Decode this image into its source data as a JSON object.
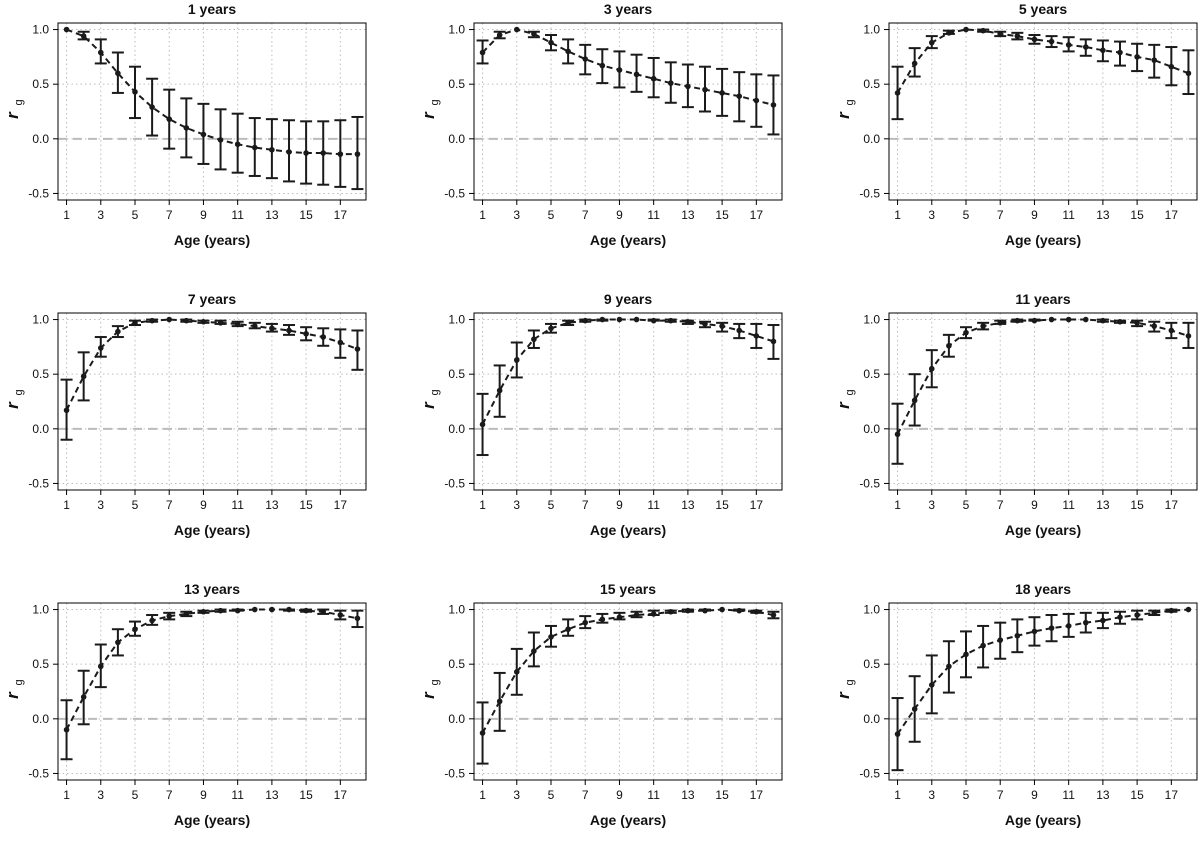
{
  "colors": {
    "line": "#1a1a1a",
    "grid": "#bdbdbd",
    "zero_line": "#bbbbbb",
    "frame": "#000000"
  },
  "chart_data": [
    {
      "type": "line",
      "title": "1 years",
      "xlabel": "Age (years)",
      "ylabel": "r",
      "ylabel_sub": "g",
      "xlim": [
        1,
        18
      ],
      "ylim": [
        -0.5,
        1.0
      ],
      "xticks": [
        1,
        3,
        5,
        7,
        9,
        11,
        13,
        15,
        17
      ],
      "yticks": [
        "1.0",
        "0.5",
        "0.0",
        "-0.5"
      ],
      "grid": true,
      "x": [
        1,
        2,
        3,
        4,
        5,
        6,
        7,
        8,
        9,
        10,
        11,
        12,
        13,
        14,
        15,
        16,
        17,
        18
      ],
      "series": [
        {
          "values": [
            1.0,
            0.94,
            0.79,
            0.6,
            0.43,
            0.29,
            0.18,
            0.1,
            0.04,
            -0.01,
            -0.05,
            -0.08,
            -0.1,
            -0.12,
            -0.13,
            -0.13,
            -0.14,
            -0.14
          ],
          "lower": [
            1.0,
            0.91,
            0.69,
            0.42,
            0.19,
            0.03,
            -0.09,
            -0.17,
            -0.23,
            -0.28,
            -0.31,
            -0.34,
            -0.36,
            -0.39,
            -0.41,
            -0.42,
            -0.44,
            -0.46
          ],
          "upper": [
            1.0,
            0.98,
            0.91,
            0.79,
            0.66,
            0.55,
            0.45,
            0.37,
            0.32,
            0.27,
            0.23,
            0.19,
            0.18,
            0.17,
            0.16,
            0.16,
            0.17,
            0.2
          ]
        }
      ]
    },
    {
      "type": "line",
      "title": "3 years",
      "xlabel": "Age (years)",
      "ylabel": "r",
      "ylabel_sub": "g",
      "xlim": [
        1,
        18
      ],
      "ylim": [
        -0.5,
        1.0
      ],
      "xticks": [
        1,
        3,
        5,
        7,
        9,
        11,
        13,
        15,
        17
      ],
      "yticks": [
        "1.0",
        "0.5",
        "0.0",
        "-0.5"
      ],
      "grid": true,
      "x": [
        1,
        2,
        3,
        4,
        5,
        6,
        7,
        8,
        9,
        10,
        11,
        12,
        13,
        14,
        15,
        16,
        17,
        18
      ],
      "series": [
        {
          "values": [
            0.79,
            0.95,
            1.0,
            0.96,
            0.88,
            0.8,
            0.73,
            0.67,
            0.63,
            0.59,
            0.55,
            0.51,
            0.48,
            0.45,
            0.42,
            0.39,
            0.35,
            0.31
          ],
          "lower": [
            0.69,
            0.92,
            1.0,
            0.93,
            0.81,
            0.69,
            0.59,
            0.51,
            0.47,
            0.43,
            0.38,
            0.33,
            0.29,
            0.25,
            0.21,
            0.16,
            0.11,
            0.04
          ],
          "upper": [
            0.9,
            0.98,
            1.0,
            0.98,
            0.95,
            0.91,
            0.86,
            0.82,
            0.8,
            0.77,
            0.74,
            0.7,
            0.68,
            0.66,
            0.64,
            0.61,
            0.59,
            0.58
          ]
        }
      ]
    },
    {
      "type": "line",
      "title": "5 years",
      "xlabel": "Age (years)",
      "ylabel": "r",
      "ylabel_sub": "g",
      "xlim": [
        1,
        18
      ],
      "ylim": [
        -0.5,
        1.0
      ],
      "xticks": [
        1,
        3,
        5,
        7,
        9,
        11,
        13,
        15,
        17
      ],
      "yticks": [
        "1.0",
        "0.5",
        "0.0",
        "-0.5"
      ],
      "grid": true,
      "x": [
        1,
        2,
        3,
        4,
        5,
        6,
        7,
        8,
        9,
        10,
        11,
        12,
        13,
        14,
        15,
        16,
        17,
        18
      ],
      "series": [
        {
          "values": [
            0.42,
            0.69,
            0.88,
            0.97,
            1.0,
            0.99,
            0.96,
            0.94,
            0.91,
            0.89,
            0.86,
            0.84,
            0.81,
            0.79,
            0.75,
            0.72,
            0.66,
            0.6
          ],
          "lower": [
            0.18,
            0.57,
            0.83,
            0.96,
            1.0,
            0.98,
            0.94,
            0.91,
            0.87,
            0.84,
            0.8,
            0.76,
            0.71,
            0.67,
            0.62,
            0.56,
            0.49,
            0.41
          ],
          "upper": [
            0.66,
            0.83,
            0.94,
            0.99,
            1.0,
            1.0,
            0.98,
            0.97,
            0.95,
            0.94,
            0.93,
            0.91,
            0.9,
            0.89,
            0.87,
            0.86,
            0.84,
            0.81
          ]
        }
      ]
    },
    {
      "type": "line",
      "title": "7 years",
      "xlabel": "Age (years)",
      "ylabel": "r",
      "ylabel_sub": "g",
      "xlim": [
        1,
        18
      ],
      "ylim": [
        -0.5,
        1.0
      ],
      "xticks": [
        1,
        3,
        5,
        7,
        9,
        11,
        13,
        15,
        17
      ],
      "yticks": [
        "1.0",
        "0.5",
        "0.0",
        "-0.5"
      ],
      "grid": true,
      "x": [
        1,
        2,
        3,
        4,
        5,
        6,
        7,
        8,
        9,
        10,
        11,
        12,
        13,
        14,
        15,
        16,
        17,
        18
      ],
      "series": [
        {
          "values": [
            0.17,
            0.48,
            0.74,
            0.89,
            0.97,
            0.99,
            1.0,
            0.99,
            0.98,
            0.97,
            0.96,
            0.94,
            0.92,
            0.9,
            0.87,
            0.84,
            0.79,
            0.73
          ],
          "lower": [
            -0.1,
            0.26,
            0.66,
            0.84,
            0.95,
            0.98,
            1.0,
            0.98,
            0.97,
            0.96,
            0.94,
            0.92,
            0.89,
            0.86,
            0.81,
            0.76,
            0.65,
            0.54
          ],
          "upper": [
            0.45,
            0.7,
            0.84,
            0.94,
            0.99,
            1.0,
            1.0,
            1.0,
            0.99,
            0.99,
            0.98,
            0.97,
            0.96,
            0.95,
            0.93,
            0.92,
            0.91,
            0.9
          ]
        }
      ]
    },
    {
      "type": "line",
      "title": "9 years",
      "xlabel": "Age (years)",
      "ylabel": "r",
      "ylabel_sub": "g",
      "xlim": [
        1,
        18
      ],
      "ylim": [
        -0.5,
        1.0
      ],
      "xticks": [
        1,
        3,
        5,
        7,
        9,
        11,
        13,
        15,
        17
      ],
      "yticks": [
        "1.0",
        "0.5",
        "0.0",
        "-0.5"
      ],
      "grid": true,
      "x": [
        1,
        2,
        3,
        4,
        5,
        6,
        7,
        8,
        9,
        10,
        11,
        12,
        13,
        14,
        15,
        16,
        17,
        18
      ],
      "series": [
        {
          "values": [
            0.04,
            0.35,
            0.63,
            0.82,
            0.92,
            0.97,
            0.99,
            1.0,
            1.0,
            1.0,
            0.99,
            0.99,
            0.98,
            0.96,
            0.94,
            0.9,
            0.85,
            0.8
          ],
          "lower": [
            -0.24,
            0.11,
            0.47,
            0.74,
            0.88,
            0.95,
            0.98,
            0.99,
            1.0,
            1.0,
            0.99,
            0.98,
            0.96,
            0.93,
            0.89,
            0.83,
            0.74,
            0.64
          ],
          "upper": [
            0.32,
            0.58,
            0.79,
            0.9,
            0.96,
            0.99,
            1.0,
            1.0,
            1.0,
            1.0,
            1.0,
            1.0,
            0.99,
            0.98,
            0.97,
            0.96,
            0.96,
            0.95
          ]
        }
      ]
    },
    {
      "type": "line",
      "title": "11 years",
      "xlabel": "Age (years)",
      "ylabel": "r",
      "ylabel_sub": "g",
      "xlim": [
        1,
        18
      ],
      "ylim": [
        -0.5,
        1.0
      ],
      "xticks": [
        1,
        3,
        5,
        7,
        9,
        11,
        13,
        15,
        17
      ],
      "yticks": [
        "1.0",
        "0.5",
        "0.0",
        "-0.5"
      ],
      "grid": true,
      "x": [
        1,
        2,
        3,
        4,
        5,
        6,
        7,
        8,
        9,
        10,
        11,
        12,
        13,
        14,
        15,
        16,
        17,
        18
      ],
      "series": [
        {
          "values": [
            -0.05,
            0.26,
            0.55,
            0.76,
            0.88,
            0.94,
            0.97,
            0.99,
            0.99,
            1.0,
            1.0,
            1.0,
            0.99,
            0.98,
            0.97,
            0.94,
            0.9,
            0.85
          ],
          "lower": [
            -0.32,
            0.03,
            0.38,
            0.66,
            0.83,
            0.91,
            0.96,
            0.98,
            0.99,
            1.0,
            1.0,
            1.0,
            0.98,
            0.97,
            0.94,
            0.89,
            0.83,
            0.74
          ],
          "upper": [
            0.23,
            0.5,
            0.72,
            0.86,
            0.93,
            0.97,
            0.99,
            1.0,
            1.0,
            1.0,
            1.0,
            1.0,
            1.0,
            0.99,
            0.99,
            0.98,
            0.97,
            0.97
          ]
        }
      ]
    },
    {
      "type": "line",
      "title": "13 years",
      "xlabel": "Age (years)",
      "ylabel": "r",
      "ylabel_sub": "g",
      "xlim": [
        1,
        18
      ],
      "ylim": [
        -0.5,
        1.0
      ],
      "xticks": [
        1,
        3,
        5,
        7,
        9,
        11,
        13,
        15,
        17
      ],
      "yticks": [
        "1.0",
        "0.5",
        "0.0",
        "-0.5"
      ],
      "grid": true,
      "x": [
        1,
        2,
        3,
        4,
        5,
        6,
        7,
        8,
        9,
        10,
        11,
        12,
        13,
        14,
        15,
        16,
        17,
        18
      ],
      "series": [
        {
          "values": [
            -0.1,
            0.2,
            0.48,
            0.7,
            0.82,
            0.9,
            0.94,
            0.96,
            0.98,
            0.99,
            0.99,
            1.0,
            1.0,
            1.0,
            0.99,
            0.98,
            0.95,
            0.92
          ],
          "lower": [
            -0.37,
            -0.05,
            0.29,
            0.58,
            0.76,
            0.86,
            0.91,
            0.94,
            0.97,
            0.98,
            0.99,
            1.0,
            1.0,
            0.99,
            0.98,
            0.96,
            0.91,
            0.84
          ],
          "upper": [
            0.17,
            0.44,
            0.68,
            0.82,
            0.89,
            0.95,
            0.97,
            0.98,
            0.99,
            1.0,
            1.0,
            1.0,
            1.0,
            1.0,
            1.0,
            1.0,
            0.99,
            0.99
          ]
        }
      ]
    },
    {
      "type": "line",
      "title": "15 years",
      "xlabel": "Age (years)",
      "ylabel": "r",
      "ylabel_sub": "g",
      "xlim": [
        1,
        18
      ],
      "ylim": [
        -0.5,
        1.0
      ],
      "xticks": [
        1,
        3,
        5,
        7,
        9,
        11,
        13,
        15,
        17
      ],
      "yticks": [
        "1.0",
        "0.5",
        "0.0",
        "-0.5"
      ],
      "grid": true,
      "x": [
        1,
        2,
        3,
        4,
        5,
        6,
        7,
        8,
        9,
        10,
        11,
        12,
        13,
        14,
        15,
        16,
        17,
        18
      ],
      "series": [
        {
          "values": [
            -0.13,
            0.16,
            0.43,
            0.62,
            0.75,
            0.82,
            0.88,
            0.91,
            0.93,
            0.95,
            0.96,
            0.98,
            0.99,
            0.99,
            1.0,
            0.99,
            0.98,
            0.95
          ],
          "lower": [
            -0.41,
            -0.11,
            0.22,
            0.48,
            0.66,
            0.76,
            0.83,
            0.88,
            0.91,
            0.93,
            0.95,
            0.97,
            0.98,
            0.99,
            1.0,
            0.99,
            0.97,
            0.92
          ],
          "upper": [
            0.15,
            0.42,
            0.64,
            0.79,
            0.85,
            0.91,
            0.94,
            0.96,
            0.97,
            0.98,
            0.99,
            0.99,
            1.0,
            1.0,
            1.0,
            1.0,
            0.99,
            0.98
          ]
        }
      ]
    },
    {
      "type": "line",
      "title": "18 years",
      "xlabel": "Age (years)",
      "ylabel": "r",
      "ylabel_sub": "g",
      "xlim": [
        1,
        18
      ],
      "ylim": [
        -0.5,
        1.0
      ],
      "xticks": [
        1,
        3,
        5,
        7,
        9,
        11,
        13,
        15,
        17
      ],
      "yticks": [
        "1.0",
        "0.5",
        "0.0",
        "-0.5"
      ],
      "grid": true,
      "x": [
        1,
        2,
        3,
        4,
        5,
        6,
        7,
        8,
        9,
        10,
        11,
        12,
        13,
        14,
        15,
        16,
        17,
        18
      ],
      "series": [
        {
          "values": [
            -0.14,
            0.09,
            0.31,
            0.48,
            0.59,
            0.67,
            0.72,
            0.76,
            0.8,
            0.83,
            0.85,
            0.88,
            0.9,
            0.93,
            0.95,
            0.97,
            0.99,
            1.0
          ],
          "lower": [
            -0.47,
            -0.21,
            0.05,
            0.24,
            0.38,
            0.47,
            0.55,
            0.61,
            0.67,
            0.71,
            0.75,
            0.79,
            0.83,
            0.87,
            0.91,
            0.95,
            0.98,
            1.0
          ],
          "upper": [
            0.19,
            0.39,
            0.58,
            0.71,
            0.8,
            0.85,
            0.88,
            0.91,
            0.93,
            0.95,
            0.96,
            0.97,
            0.97,
            0.98,
            0.99,
            0.99,
            1.0,
            1.0
          ]
        }
      ]
    }
  ]
}
